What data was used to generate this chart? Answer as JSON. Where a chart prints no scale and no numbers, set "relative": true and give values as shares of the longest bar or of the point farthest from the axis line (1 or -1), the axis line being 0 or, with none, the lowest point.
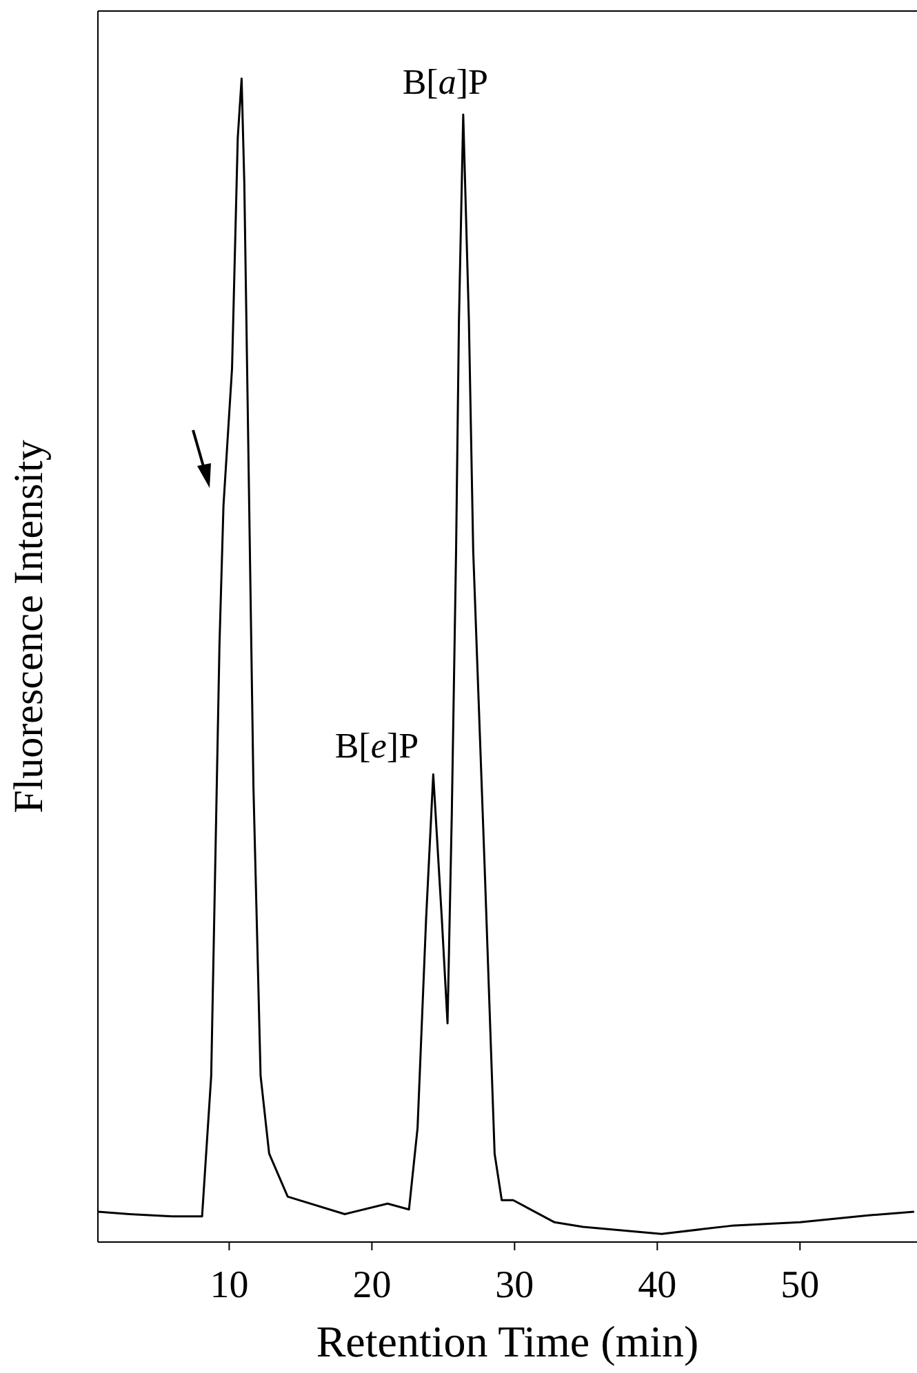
{
  "chart_data": {
    "type": "line",
    "xlabel": "Retention Time (min)",
    "ylabel": "Fluorescence Intensity",
    "relative": true,
    "color": "#000000",
    "x": [
      0.8,
      3,
      6,
      8.1,
      8.74,
      9.32,
      9.6,
      10.2,
      10.6,
      10.87,
      11.06,
      11.45,
      11.7,
      12.2,
      12.8,
      14.1,
      18.1,
      21.1,
      22.6,
      23.2,
      23.8,
      24.3,
      24.9,
      25.3,
      25.6,
      25.9,
      26.1,
      26.4,
      26.8,
      27.1,
      27.9,
      28.6,
      29.1,
      29.9,
      32.8,
      34.8,
      40.3,
      45.2,
      50.0,
      54.8,
      58.0
    ],
    "values": [
      0.026,
      0.024,
      0.022,
      0.022,
      0.143,
      0.514,
      0.633,
      0.751,
      0.949,
      1.0,
      0.91,
      0.594,
      0.391,
      0.143,
      0.076,
      0.039,
      0.024,
      0.033,
      0.028,
      0.098,
      0.278,
      0.402,
      0.278,
      0.188,
      0.368,
      0.594,
      0.791,
      0.969,
      0.791,
      0.594,
      0.323,
      0.076,
      0.036,
      0.036,
      0.017,
      0.013,
      0.007,
      0.014,
      0.017,
      0.023,
      0.026
    ],
    "xlim": [
      0.8,
      58.2
    ],
    "xticks": [
      10,
      20,
      30,
      40,
      50
    ],
    "annotations": [
      {
        "text": "B[a]P",
        "x": 26.4,
        "y": 0.969
      },
      {
        "text": "B[e]P",
        "x": 24.3,
        "y": 0.402
      }
    ]
  }
}
